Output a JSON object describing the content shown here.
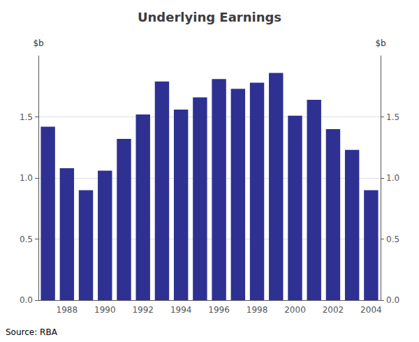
{
  "chart_data": {
    "type": "bar",
    "title": "Underlying Earnings",
    "ylabel": "$b",
    "y2label": "$b",
    "annotation": "Source: RBA",
    "categories": [
      null,
      "1988",
      null,
      "1990",
      null,
      "1992",
      null,
      "1994",
      null,
      "1996",
      null,
      "1998",
      null,
      "2000",
      null,
      "2002",
      null,
      "2004"
    ],
    "values": [
      1.42,
      1.08,
      0.9,
      1.06,
      1.32,
      1.52,
      1.79,
      1.56,
      1.66,
      1.81,
      1.73,
      1.78,
      1.86,
      1.51,
      1.64,
      1.4,
      1.23,
      0.9
    ],
    "color": "#2E3192",
    "ylim": [
      0.0,
      2.0
    ],
    "yticks": [
      {
        "value": 0,
        "label": "0.0"
      },
      0.5,
      {
        "value": 1,
        "label": "1.0"
      },
      1.5
    ],
    "y2lim": [
      0.0,
      2.0
    ],
    "y2ticks": [
      {
        "value": 0,
        "label": "0.0"
      },
      0.5,
      {
        "value": 1,
        "label": "1.0"
      },
      1.5
    ],
    "grid": true
  }
}
